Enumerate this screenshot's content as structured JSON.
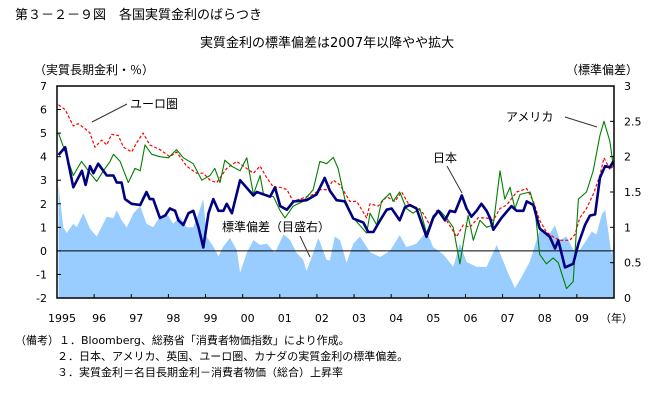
{
  "title": "第３－２－９図　各国実質金利のばらつき",
  "subtitle": "実質金利の標準偏差は2007年以降やや拡大",
  "notes": [
    "（備考）１．Bloomberg、総務省「消費者物価指数」により作成。",
    "２．日本、アメリカ、英国、ユーロ圏、カナダの実質金利の標準偏差。",
    "３．実質金利＝名目長期金利－消費者物価（総合）上昇率"
  ],
  "chart_data": {
    "type": "line",
    "ylabel": "（実質長期金利・％）",
    "ylabel_right": "（標準偏差）",
    "xlabel": "（年）",
    "xlim": [
      1995,
      2010
    ],
    "ylim": [
      -2,
      7
    ],
    "ylim_right": [
      0,
      3
    ],
    "yticks": [
      "7",
      "6",
      "5",
      "4",
      "3",
      "2",
      "1",
      "0",
      "-1",
      "-2"
    ],
    "yticks_right": [
      "3",
      "2.5",
      "2",
      "1.5",
      "1",
      "0.5",
      "0"
    ],
    "xticks": [
      "1995",
      "96",
      "97",
      "98",
      "99",
      "00",
      "01",
      "02",
      "03",
      "04",
      "05",
      "06",
      "07",
      "08",
      "09"
    ],
    "grid": false,
    "colors": {
      "japan": "#000080",
      "america": "#008000",
      "euro": "#ff0000",
      "stddev": "#99ccff"
    },
    "annotations": {
      "euro": "ユーロ圏",
      "america": "アメリカ",
      "japan": "日本",
      "stddev": "標準偏差（目盛右）"
    },
    "series": [
      {
        "name": "標準偏差（目盛右）",
        "axis": "right",
        "style": "area",
        "x": [
          1995.04,
          1995.08,
          1995.17,
          1995.26,
          1995.44,
          1995.53,
          1995.71,
          1995.89,
          1996.07,
          1996.34,
          1996.52,
          1996.61,
          1996.74,
          1996.88,
          1997.06,
          1997.24,
          1997.41,
          1997.59,
          1997.77,
          1997.95,
          1998.13,
          1998.31,
          1998.49,
          1998.67,
          1998.81,
          1998.94,
          1999.03,
          1999.21,
          1999.35,
          1999.48,
          1999.66,
          1999.84,
          1999.93,
          2000.11,
          2000.29,
          2000.47,
          2000.65,
          2000.87,
          2001.1,
          2001.28,
          2001.45,
          2001.63,
          2001.72,
          2001.9,
          2002.04,
          2002.26,
          2002.35,
          2002.48,
          2002.62,
          2002.8,
          2002.98,
          2003.16,
          2003.43,
          2003.7,
          2003.97,
          2004.23,
          2004.41,
          2004.68,
          2004.95,
          2005.13,
          2005.4,
          2005.67,
          2005.85,
          2006.03,
          2006.3,
          2006.57,
          2006.84,
          2006.97,
          2007.15,
          2007.33,
          2007.47,
          2007.73,
          2008.0,
          2008.27,
          2008.41,
          2008.54,
          2008.72,
          2008.9,
          2009.08,
          2009.26,
          2009.4,
          2009.53,
          2009.67,
          2009.76,
          2009.84,
          2009.93,
          2009.98
        ],
        "y": [
          1.6,
          1.41,
          1.0,
          0.92,
          1.05,
          1.0,
          1.2,
          0.98,
          0.87,
          1.15,
          1.13,
          1.24,
          1.1,
          1.0,
          1.2,
          1.3,
          1.05,
          1.0,
          1.15,
          1.2,
          1.05,
          1.15,
          1.0,
          1.0,
          1.2,
          1.4,
          0.87,
          0.73,
          0.59,
          0.73,
          0.85,
          0.68,
          0.36,
          0.64,
          0.82,
          0.75,
          0.77,
          0.64,
          0.9,
          0.82,
          0.64,
          0.54,
          0.38,
          0.64,
          0.85,
          0.54,
          0.53,
          0.87,
          0.82,
          0.5,
          0.77,
          0.87,
          0.65,
          0.58,
          0.67,
          0.89,
          0.72,
          0.77,
          0.94,
          0.72,
          0.62,
          0.44,
          0.77,
          0.51,
          0.44,
          0.44,
          0.75,
          0.58,
          0.35,
          0.14,
          0.26,
          0.51,
          0.96,
          0.91,
          1.03,
          0.82,
          0.87,
          0.68,
          0.68,
          0.82,
          0.94,
          0.9,
          1.18,
          1.25,
          0.96,
          0.62,
          0.72
        ]
      },
      {
        "name": "ユーロ圏",
        "axis": "left",
        "style": "dashed",
        "x": [
          1995.04,
          1995.22,
          1995.44,
          1995.57,
          1995.75,
          1995.89,
          1996.02,
          1996.2,
          1996.34,
          1996.47,
          1996.65,
          1996.79,
          1997.01,
          1997.15,
          1997.32,
          1997.5,
          1997.77,
          1998.04,
          1998.22,
          1998.49,
          1998.76,
          1998.94,
          1999.12,
          1999.3,
          1999.57,
          1999.84,
          2000.02,
          2000.29,
          2000.47,
          2000.65,
          2000.83,
          2001.01,
          2001.19,
          2001.36,
          2001.54,
          2001.9,
          2002.08,
          2002.26,
          2002.44,
          2002.62,
          2002.89,
          2003.07,
          2003.34,
          2003.43,
          2003.65,
          2003.88,
          2004.1,
          2004.28,
          2004.5,
          2004.68,
          2004.86,
          2005.04,
          2005.22,
          2005.49,
          2005.76,
          2005.94,
          2006.12,
          2006.34,
          2006.57,
          2006.75,
          2006.93,
          2007.11,
          2007.38,
          2007.65,
          2007.83,
          2008.0,
          2008.18,
          2008.36,
          2008.54,
          2008.81,
          2008.95,
          2009.08,
          2009.26,
          2009.44,
          2009.62,
          2009.73,
          2009.89,
          2009.98
        ],
        "y": [
          6.2,
          6.0,
          5.3,
          5.4,
          5.2,
          5.0,
          4.4,
          4.7,
          4.5,
          4.95,
          4.9,
          4.4,
          4.2,
          4.6,
          5.0,
          4.5,
          4.3,
          4.0,
          4.2,
          3.6,
          3.3,
          3.3,
          3.0,
          2.9,
          3.5,
          3.8,
          3.6,
          3.3,
          3.6,
          3.1,
          2.7,
          2.7,
          2.6,
          2.1,
          2.2,
          2.4,
          2.6,
          2.6,
          3.0,
          2.8,
          2.1,
          2.1,
          1.4,
          2.0,
          1.9,
          2.3,
          2.1,
          2.5,
          1.9,
          1.85,
          1.6,
          1.1,
          1.7,
          1.3,
          0.6,
          1.1,
          1.0,
          1.4,
          1.4,
          1.3,
          1.8,
          1.95,
          2.5,
          2.65,
          2.1,
          1.3,
          0.8,
          0.6,
          0.45,
          0.45,
          0.7,
          1.4,
          1.8,
          2.4,
          3.2,
          3.95,
          3.45,
          3.6
        ]
      },
      {
        "name": "アメリカ",
        "axis": "left",
        "style": "thin",
        "x": [
          1995.04,
          1995.22,
          1995.44,
          1995.66,
          1995.8,
          1995.89,
          1996.07,
          1996.25,
          1996.43,
          1996.52,
          1996.7,
          1996.92,
          1997.1,
          1997.24,
          1997.37,
          1997.55,
          1997.77,
          1998.0,
          1998.22,
          1998.4,
          1998.67,
          1998.9,
          1999.12,
          1999.25,
          1999.39,
          1999.52,
          1999.7,
          1999.93,
          2000.11,
          2000.29,
          2000.47,
          2000.56,
          2000.83,
          2001.01,
          2001.14,
          2001.36,
          2001.63,
          2001.9,
          2002.08,
          2002.26,
          2002.44,
          2002.57,
          2002.75,
          2002.98,
          2003.34,
          2003.43,
          2003.61,
          2003.74,
          2003.97,
          2004.05,
          2004.23,
          2004.41,
          2004.59,
          2004.77,
          2004.95,
          2005.13,
          2005.31,
          2005.49,
          2005.67,
          2005.85,
          2005.94,
          2006.07,
          2006.21,
          2006.39,
          2006.57,
          2006.75,
          2006.93,
          2007.06,
          2007.2,
          2007.33,
          2007.47,
          2007.74,
          2007.87,
          2008.0,
          2008.18,
          2008.36,
          2008.5,
          2008.72,
          2008.9,
          2009.04,
          2009.26,
          2009.44,
          2009.62,
          2009.73,
          2009.89,
          2009.98
        ],
        "y": [
          5.0,
          4.2,
          3.2,
          3.8,
          3.5,
          3.3,
          2.95,
          3.4,
          3.8,
          4.1,
          3.8,
          2.9,
          3.5,
          3.4,
          4.5,
          4.1,
          4.0,
          3.95,
          4.3,
          3.95,
          3.7,
          3.0,
          3.2,
          3.5,
          2.9,
          3.85,
          3.6,
          3.4,
          3.95,
          2.4,
          3.2,
          2.4,
          2.3,
          1.7,
          1.4,
          1.9,
          2.1,
          2.6,
          3.8,
          3.7,
          3.97,
          3.5,
          2.2,
          1.4,
          0.75,
          1.6,
          1.1,
          2.1,
          2.45,
          2.1,
          2.5,
          1.8,
          1.6,
          1.8,
          0.75,
          1.5,
          1.7,
          1.4,
          1.0,
          -0.55,
          0.3,
          1.5,
          0.45,
          1.3,
          1.0,
          1.1,
          3.4,
          2.2,
          2.7,
          1.8,
          2.4,
          2.5,
          1.8,
          -0.15,
          -0.55,
          -0.3,
          -0.5,
          -1.6,
          -1.3,
          2.2,
          2.5,
          3.4,
          4.9,
          5.5,
          4.65,
          3.6
        ]
      },
      {
        "name": "日本",
        "axis": "left",
        "style": "thick",
        "x": [
          1995.04,
          1995.22,
          1995.44,
          1995.67,
          1995.77,
          1995.89,
          1995.98,
          1996.11,
          1996.34,
          1996.52,
          1996.61,
          1996.74,
          1996.83,
          1997.01,
          1997.24,
          1997.41,
          1997.5,
          1997.59,
          1997.77,
          1997.91,
          1998.04,
          1998.18,
          1998.27,
          1998.4,
          1998.54,
          1998.67,
          1998.81,
          1998.94,
          1999.08,
          1999.21,
          1999.35,
          1999.48,
          1999.57,
          1999.71,
          1999.93,
          2000.29,
          2000.38,
          2000.74,
          2000.87,
          2001.01,
          2001.19,
          2001.37,
          2001.72,
          2001.99,
          2002.21,
          2002.35,
          2002.53,
          2002.75,
          2002.98,
          2003.25,
          2003.38,
          2003.52,
          2003.7,
          2003.88,
          2004.01,
          2004.1,
          2004.23,
          2004.37,
          2004.5,
          2004.68,
          2004.95,
          2005.13,
          2005.27,
          2005.45,
          2005.58,
          2005.72,
          2005.9,
          2006.03,
          2006.16,
          2006.3,
          2006.43,
          2006.57,
          2006.66,
          2006.75,
          2006.97,
          2007.24,
          2007.38,
          2007.56,
          2007.65,
          2007.83,
          2008.0,
          2008.27,
          2008.41,
          2008.5,
          2008.68,
          2008.9,
          2009.04,
          2009.22,
          2009.35,
          2009.49,
          2009.62,
          2009.76,
          2009.89,
          2009.98
        ],
        "y": [
          4.07,
          4.4,
          2.7,
          3.4,
          2.8,
          3.6,
          3.3,
          3.7,
          3.2,
          3.2,
          2.9,
          2.9,
          2.2,
          2.0,
          1.95,
          2.5,
          2.2,
          2.2,
          1.4,
          1.5,
          1.8,
          1.7,
          1.3,
          1.1,
          1.6,
          1.7,
          1.0,
          0.15,
          1.6,
          2.2,
          1.7,
          1.7,
          2.0,
          1.6,
          3.0,
          2.35,
          2.5,
          2.3,
          2.7,
          1.9,
          1.75,
          2.1,
          2.15,
          2.4,
          3.1,
          2.55,
          2.15,
          2.1,
          1.37,
          1.2,
          0.8,
          0.8,
          1.3,
          1.75,
          1.8,
          1.6,
          1.3,
          1.85,
          1.95,
          1.8,
          0.6,
          1.4,
          1.7,
          1.3,
          1.7,
          1.65,
          2.35,
          1.8,
          1.45,
          1.7,
          2.0,
          1.7,
          1.4,
          0.9,
          1.4,
          1.9,
          1.7,
          1.7,
          2.1,
          1.95,
          0.95,
          0.6,
          0.1,
          0.45,
          -0.7,
          -0.55,
          0.3,
          1.1,
          1.5,
          1.55,
          3.1,
          3.6,
          3.55,
          3.8
        ]
      }
    ]
  }
}
